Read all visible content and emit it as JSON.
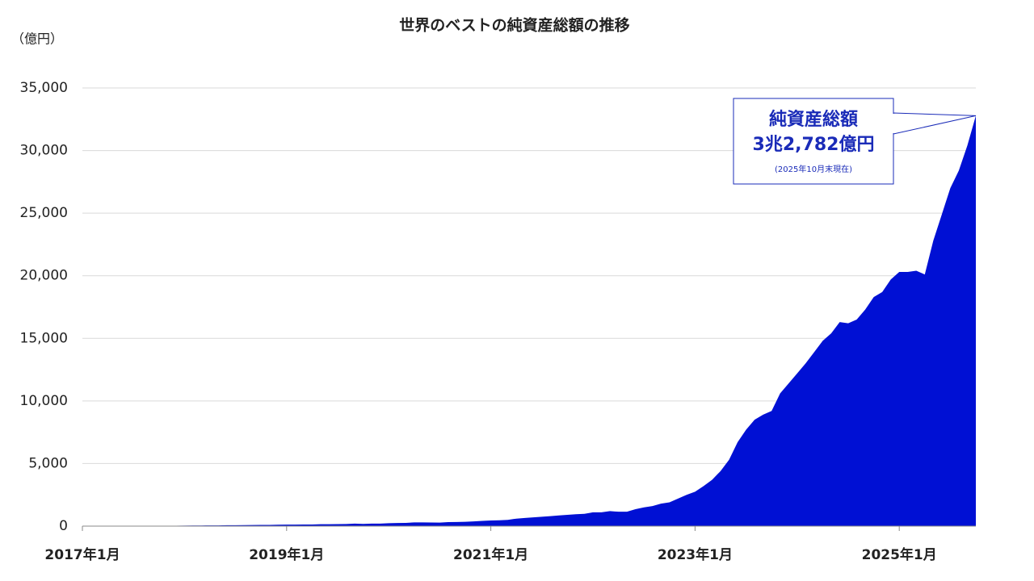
{
  "chart_data": {
    "type": "area",
    "title": "世界のベストの純資産総額の推移",
    "y_unit": "（億円）",
    "categories": [
      "2017年1月",
      null,
      null,
      null,
      null,
      null,
      null,
      null,
      null,
      null,
      null,
      null,
      null,
      null,
      null,
      null,
      null,
      null,
      null,
      null,
      null,
      null,
      null,
      null,
      "2019年1月",
      null,
      null,
      null,
      null,
      null,
      null,
      null,
      null,
      null,
      null,
      null,
      null,
      null,
      null,
      null,
      null,
      null,
      null,
      null,
      null,
      null,
      null,
      null,
      "2021年1月",
      null,
      null,
      null,
      null,
      null,
      null,
      null,
      null,
      null,
      null,
      null,
      null,
      null,
      null,
      null,
      null,
      null,
      null,
      null,
      null,
      null,
      null,
      null,
      "2023年1月",
      null,
      null,
      null,
      null,
      null,
      null,
      null,
      null,
      null,
      null,
      null,
      null,
      null,
      null,
      null,
      null,
      null,
      null,
      null,
      null,
      null,
      null,
      null,
      "2025年1月",
      null,
      null,
      null,
      null,
      null,
      null,
      null,
      null,
      null
    ],
    "values": [
      0,
      0,
      0,
      0,
      0,
      0,
      0,
      0,
      0,
      10,
      20,
      30,
      40,
      50,
      50,
      60,
      60,
      70,
      70,
      80,
      90,
      100,
      100,
      110,
      120,
      120,
      130,
      130,
      150,
      150,
      160,
      170,
      200,
      180,
      200,
      200,
      230,
      250,
      260,
      300,
      300,
      290,
      280,
      320,
      330,
      350,
      380,
      420,
      450,
      470,
      500,
      600,
      650,
      700,
      750,
      800,
      850,
      900,
      950,
      980,
      1100,
      1100,
      1200,
      1150,
      1150,
      1350,
      1500,
      1600,
      1800,
      1900,
      2200,
      2500,
      2750,
      3200,
      3700,
      4400,
      5300,
      6700,
      7700,
      8500,
      8900,
      9200,
      10600,
      11400,
      12200,
      13000,
      13900,
      14800,
      15400,
      16300,
      16200,
      16500,
      17300,
      18300,
      18700,
      19700,
      20300,
      20300,
      20400,
      20100,
      22800,
      24900,
      27000,
      28400,
      30400,
      32782
    ],
    "color": "#0010d4",
    "ylim": [
      0,
      35000
    ],
    "yticks": [
      0,
      {
        "value": 5000,
        "label": "5,000"
      },
      {
        "value": 10000,
        "label": "10,000"
      },
      {
        "value": 15000,
        "label": "15,000"
      },
      {
        "value": 20000,
        "label": "20,000"
      },
      {
        "value": 25000,
        "label": "25,000"
      },
      {
        "value": 30000,
        "label": "30,000"
      },
      {
        "value": 35000,
        "label": "35,000"
      }
    ],
    "grid": true,
    "annotation": {
      "title": "純資産総額",
      "value": "3兆2,782億円",
      "note": "(2025年10月末現在)"
    }
  }
}
